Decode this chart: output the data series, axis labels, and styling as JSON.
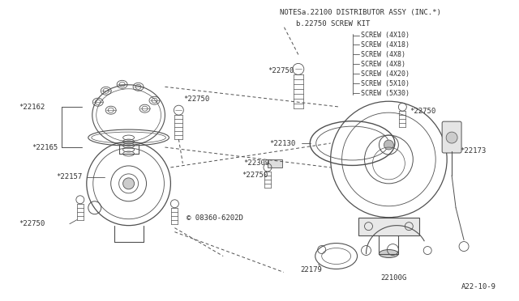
{
  "bg_color": "#ffffff",
  "line_color": "#505050",
  "text_color": "#303030",
  "notes_line1": "NOTESa.22100 DISTRIBUTOR ASSY (INC.*)",
  "notes_line2": "b.22750 SCREW KIT",
  "screw_list": [
    "SCREW (4X10)",
    "SCREW (4X18)",
    "SCREW (4X8)",
    "SCREW (4X8)",
    "SCREW (4X20)",
    "SCREW (5X10)",
    "SCREW (5X30)"
  ],
  "footer_text": "A22-10-9",
  "font_size_notes": 6.5,
  "font_size_labels": 6.5,
  "font_size_screw": 6.0
}
